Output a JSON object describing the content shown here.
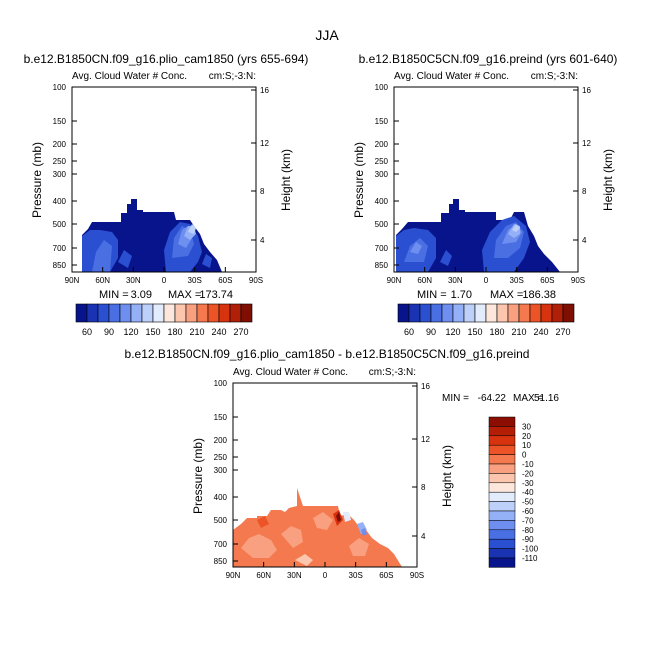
{
  "figure": {
    "season": "JJA"
  },
  "chart_data": [
    {
      "type": "heatmap",
      "title": "b.e12.B1850CN.f09_g16.plio_cam1850 (yrs 655-694)",
      "subtitle_left": "Avg. Cloud Water # Conc.",
      "subtitle_right": "cm:S;-3:N:",
      "ylabel": "Pressure (mb)",
      "ylabel_right": "Height (km)",
      "x_ticks": [
        "90N",
        "60N",
        "30N",
        "0",
        "30S",
        "60S",
        "90S"
      ],
      "y_ticks": [
        "100",
        "150",
        "200",
        "250",
        "300",
        "400",
        "500",
        "700",
        "850"
      ],
      "y_right_ticks": [
        "16",
        "12",
        "8",
        "4"
      ],
      "min_label": "MIN =",
      "min": "3.09",
      "max_label": "MAX =",
      "max": "173.74",
      "colorbar_ticks": [
        "60",
        "90",
        "120",
        "150",
        "180",
        "210",
        "240",
        "270"
      ]
    },
    {
      "type": "heatmap",
      "title": "b.e12.B1850C5CN.f09_g16.preind (yrs 601-640)",
      "subtitle_left": "Avg. Cloud Water # Conc.",
      "subtitle_right": "cm:S;-3:N:",
      "ylabel": "Pressure (mb)",
      "ylabel_right": "Height (km)",
      "x_ticks": [
        "90N",
        "60N",
        "30N",
        "0",
        "30S",
        "60S",
        "90S"
      ],
      "y_ticks": [
        "100",
        "150",
        "200",
        "250",
        "300",
        "400",
        "500",
        "700",
        "850"
      ],
      "y_right_ticks": [
        "16",
        "12",
        "8",
        "4"
      ],
      "min_label": "MIN =",
      "min": "1.70",
      "max_label": "MAX =",
      "max": "186.38",
      "colorbar_ticks": [
        "60",
        "90",
        "120",
        "150",
        "180",
        "210",
        "240",
        "270"
      ]
    },
    {
      "type": "heatmap",
      "title": "b.e12.B1850CN.f09_g16.plio_cam1850 - b.e12.B1850C5CN.f09_g16.preind",
      "subtitle_left": "Avg. Cloud Water # Conc.",
      "subtitle_right": "cm:S;-3:N:",
      "ylabel": "Pressure (mb)",
      "ylabel_right": "Height (km)",
      "x_ticks": [
        "90N",
        "60N",
        "30N",
        "0",
        "30S",
        "60S",
        "90S"
      ],
      "y_ticks": [
        "100",
        "150",
        "200",
        "250",
        "300",
        "400",
        "500",
        "700",
        "850"
      ],
      "y_right_ticks": [
        "16",
        "12",
        "8",
        "4"
      ],
      "min_label": "MIN =",
      "min": "-64.22",
      "max_label": "MAX =",
      "max": "51.16",
      "colorbar_ticks": [
        "30",
        "20",
        "10",
        "0",
        "-10",
        "-20",
        "-30",
        "-40",
        "-50",
        "-60",
        "-70",
        "-80",
        "-90",
        "-100",
        "-110"
      ]
    }
  ],
  "colors": {
    "abs_scale": [
      "#08148c",
      "#1a33b3",
      "#2b4fd1",
      "#4a6fe3",
      "#6e8ff0",
      "#94b0f7",
      "#bcd0fa",
      "#e2ecfd",
      "#fde7dc",
      "#fbc6ad",
      "#f8a07f",
      "#f5794f",
      "#ec5327",
      "#d8330f",
      "#b01f07",
      "#7e0f02"
    ],
    "diff_scale": [
      "#8c0d02",
      "#b51e06",
      "#d8330f",
      "#ec5327",
      "#f5794f",
      "#f8a07f",
      "#fbc6ad",
      "#fde7dc",
      "#e2ecfd",
      "#bcd0fa",
      "#94b0f7",
      "#6e8ff0",
      "#4a6fe3",
      "#2b4fd1",
      "#1a33b3",
      "#08148c"
    ]
  }
}
